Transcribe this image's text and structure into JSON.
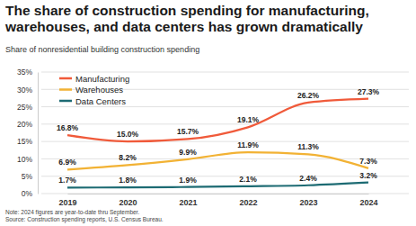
{
  "chart_data": {
    "type": "line",
    "title": [
      "The share of construction spending for manufacturing,",
      "warehouses, and data centers has grown dramatically"
    ],
    "subtitle": "Share of nonresidential building construction spending",
    "notes": [
      "Note: 2024 figures are year-to-date thru September.",
      "Source: Construction spending reports, U.S. Census Bureau."
    ],
    "categories": [
      "2019",
      "2020",
      "2021",
      "2022",
      "2023",
      "2024"
    ],
    "series": [
      {
        "name": "Manufacturing",
        "color": "#f05a3a",
        "values": [
          16.8,
          15.0,
          15.7,
          19.1,
          26.2,
          27.3
        ],
        "value_labels": [
          "16.8%",
          "15.0%",
          "15.7%",
          "19.1%",
          "26.2%",
          "27.3%"
        ]
      },
      {
        "name": "Warehouses",
        "color": "#f2b234",
        "values": [
          6.9,
          8.2,
          9.9,
          11.9,
          11.3,
          7.3
        ],
        "value_labels": [
          "6.9%",
          "8.2%",
          "9.9%",
          "11.9%",
          "11.3%",
          "7.3%"
        ]
      },
      {
        "name": "Data Centers",
        "color": "#1d6b73",
        "values": [
          1.7,
          1.8,
          1.9,
          2.1,
          2.4,
          3.2
        ],
        "value_labels": [
          "1.7%",
          "1.8%",
          "1.9%",
          "2.1%",
          "2.4%",
          "3.2%"
        ]
      }
    ],
    "ylim": [
      0,
      35
    ],
    "yticks": [
      {
        "value": 0,
        "label": "0%"
      },
      {
        "value": 5,
        "label": "5%"
      },
      {
        "value": 10,
        "label": "10%"
      },
      {
        "value": 15,
        "label": "15%"
      },
      {
        "value": 20,
        "label": "20%"
      },
      {
        "value": 25,
        "label": "25%"
      },
      {
        "value": 30,
        "label": "30%"
      },
      {
        "value": 35,
        "label": "35%"
      }
    ],
    "grid": true,
    "legend": "top-left",
    "data_labels": true
  }
}
